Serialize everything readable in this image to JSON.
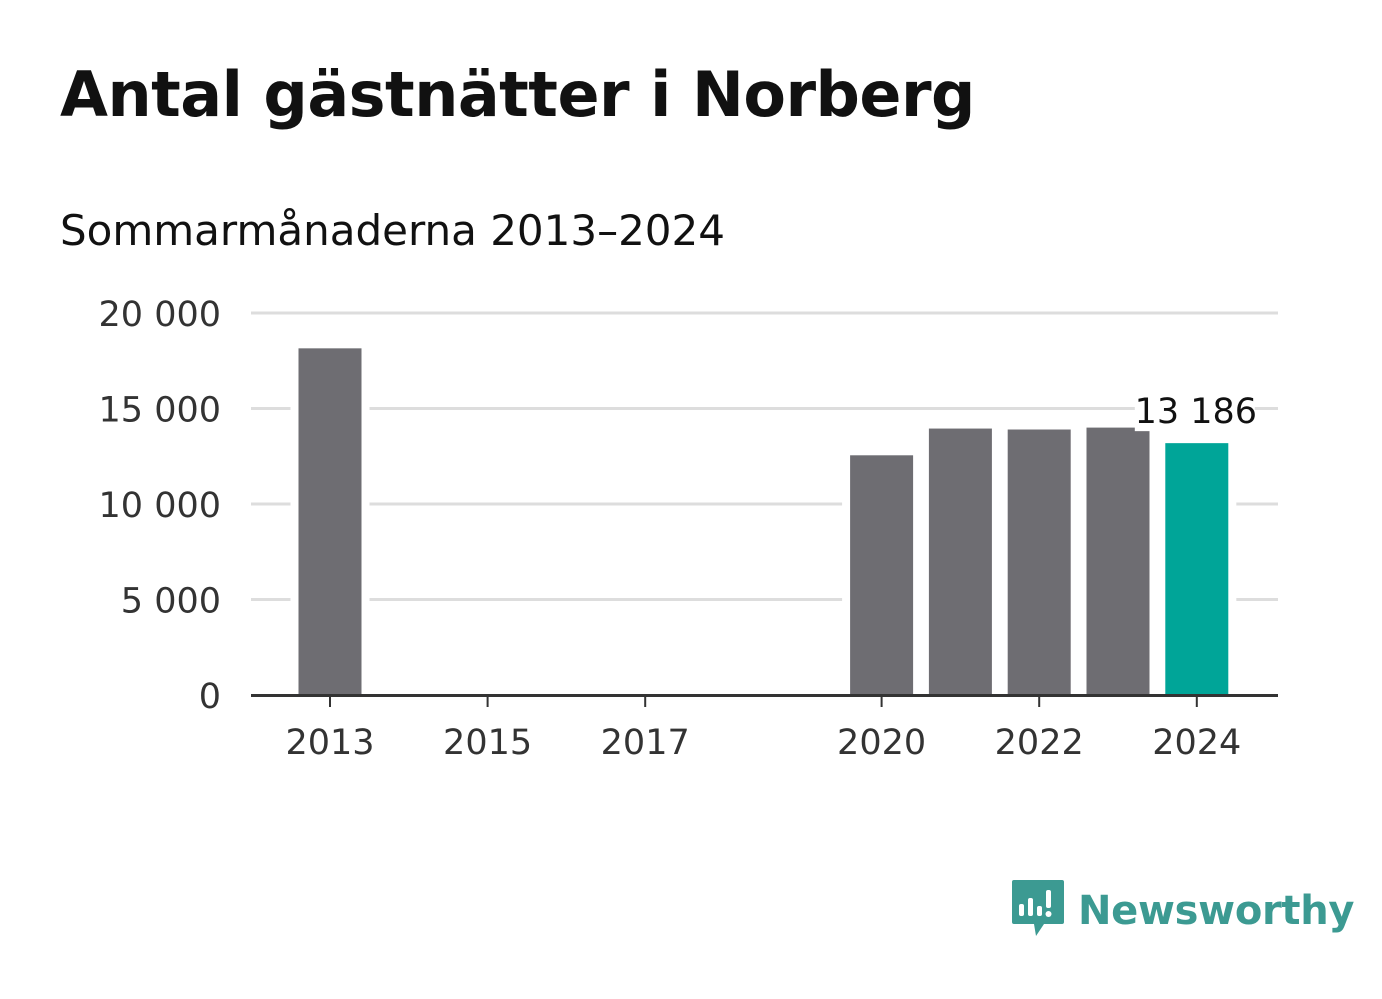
{
  "title": "Antal gästnätter i Norberg",
  "subtitle": "Sommarmånaderna 2013–2024",
  "brand": {
    "name": "Newsworthy",
    "icon": "newsworthy-logo-icon",
    "color": "#3c9a92"
  },
  "colors": {
    "bar": "#6e6d72",
    "highlight": "#00a598",
    "grid": "#dddddd",
    "axis": "#333333"
  },
  "chart_data": {
    "type": "bar",
    "title": "Antal gästnätter i Norberg",
    "subtitle": "Sommarmånaderna 2013–2024",
    "x": [
      2013,
      2014,
      2015,
      2016,
      2017,
      2018,
      2019,
      2020,
      2021,
      2022,
      2023,
      2024
    ],
    "values": [
      18150,
      null,
      null,
      null,
      null,
      null,
      null,
      12550,
      13950,
      13900,
      14000,
      13186
    ],
    "highlight_index": 11,
    "data_label": "13 186",
    "x_tick_labels": [
      "2013",
      "2015",
      "2017",
      "2020",
      "2022",
      "2024"
    ],
    "x_tick_values": [
      2013,
      2015,
      2017,
      2020,
      2022,
      2024
    ],
    "y_tick_labels": [
      "0",
      "5 000",
      "10 000",
      "15 000",
      "20 000"
    ],
    "y_tick_values": [
      0,
      5000,
      10000,
      15000,
      20000
    ],
    "ylim": [
      0,
      20000
    ],
    "grid": true,
    "legend": "none"
  }
}
